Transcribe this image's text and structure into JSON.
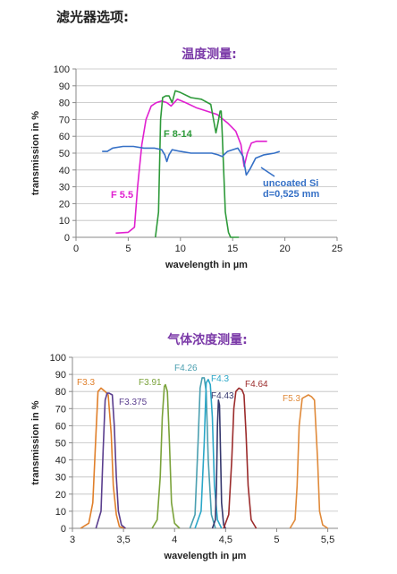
{
  "page": {
    "heading": "滤光器选项:"
  },
  "colors": {
    "title": "#7b3aa8",
    "axis": "#888888",
    "grid": "#bfbfbf"
  },
  "chart_data": [
    {
      "type": "line",
      "title": "温度测量:",
      "xlabel": "wavelength in µm",
      "ylabel": "transmission in %",
      "xlim": [
        0,
        25
      ],
      "ylim": [
        0,
        100
      ],
      "xticks": [
        0,
        5,
        10,
        15,
        20,
        25
      ],
      "yticks": [
        0,
        10,
        20,
        30,
        40,
        50,
        60,
        70,
        80,
        90,
        100
      ],
      "grid": "horizontal",
      "series": [
        {
          "name": "F 5.5",
          "color": "#e020d0",
          "x": [
            3.8,
            5.0,
            5.6,
            5.9,
            6.3,
            6.7,
            7.2,
            7.7,
            8.2,
            8.7,
            9.1,
            9.7,
            10.5,
            11.5,
            12.5,
            13.5,
            14.5,
            15.3,
            15.8,
            16.1,
            16.4,
            16.8,
            17.3,
            17.8,
            18.3
          ],
          "y": [
            2.5,
            3,
            6,
            30,
            55,
            70,
            78,
            80,
            81,
            80,
            78,
            82,
            80,
            77,
            75,
            73,
            68,
            63,
            55,
            42,
            50,
            56,
            57,
            57,
            57
          ]
        },
        {
          "name": "F 8-14",
          "color": "#2e9a3a",
          "x": [
            7.6,
            7.9,
            8.1,
            8.3,
            8.6,
            8.9,
            9.2,
            9.5,
            10.0,
            11.0,
            12.0,
            12.9,
            13.4,
            13.6,
            13.8,
            13.9,
            14.0,
            14.3,
            14.6,
            14.8,
            15.2,
            15.6
          ],
          "y": [
            0,
            15,
            70,
            83,
            84,
            84,
            80,
            87,
            86,
            83,
            82,
            79,
            62,
            68,
            75,
            75,
            62,
            15,
            3,
            0,
            0,
            0
          ]
        },
        {
          "name": "uncoated Si\nd=0,525 mm",
          "color": "#3570c6",
          "x": [
            2.5,
            3.0,
            3.5,
            4.5,
            5.5,
            6.5,
            7.5,
            8.2,
            8.5,
            8.7,
            8.9,
            9.2,
            10.0,
            11.0,
            12.0,
            13.0,
            13.6,
            14.0,
            14.5,
            15.0,
            15.5,
            16.0,
            16.3,
            16.7,
            17.2,
            18.0,
            19.0,
            19.5
          ],
          "y": [
            51,
            51,
            53,
            54,
            54,
            53,
            53,
            52,
            49,
            45,
            49,
            52,
            51,
            50,
            50,
            50,
            49,
            48,
            51,
            52,
            53,
            48,
            37,
            41,
            47,
            49,
            50,
            51
          ]
        }
      ]
    },
    {
      "type": "line",
      "title": "气体浓度测量:",
      "xlabel": "wavelength in µm",
      "ylabel": "transmission in %",
      "xlim": [
        3,
        5.6
      ],
      "ylim": [
        0,
        100
      ],
      "xticks": [
        3,
        3.5,
        4,
        4.5,
        5,
        5.5
      ],
      "xtick_labels": [
        "3",
        "3,5",
        "4",
        "4,5",
        "5",
        "5,5"
      ],
      "yticks": [
        0,
        10,
        20,
        30,
        40,
        50,
        60,
        70,
        80,
        90,
        100
      ],
      "grid": "horizontal",
      "series": [
        {
          "name": "F3.3",
          "color": "#e07f2a",
          "x": [
            3.08,
            3.16,
            3.2,
            3.23,
            3.25,
            3.28,
            3.32,
            3.35,
            3.38,
            3.4,
            3.43,
            3.46,
            3.52
          ],
          "y": [
            0,
            3,
            15,
            55,
            80,
            82,
            80,
            78,
            55,
            25,
            8,
            1,
            0
          ]
        },
        {
          "name": "F3.375",
          "color": "#5a3e8e",
          "x": [
            3.23,
            3.28,
            3.3,
            3.32,
            3.34,
            3.36,
            3.39,
            3.41,
            3.43,
            3.45,
            3.48,
            3.52
          ],
          "y": [
            0,
            10,
            45,
            75,
            79,
            79,
            78,
            60,
            30,
            10,
            2,
            0
          ]
        },
        {
          "name": "F3.91",
          "color": "#7aa23a",
          "x": [
            3.78,
            3.83,
            3.86,
            3.88,
            3.9,
            3.91,
            3.93,
            3.95,
            3.97,
            4.0,
            4.05
          ],
          "y": [
            0,
            5,
            30,
            65,
            83,
            84,
            80,
            50,
            15,
            3,
            0
          ]
        },
        {
          "name": "F4.26",
          "color": "#4a9fb0",
          "x": [
            4.15,
            4.2,
            4.23,
            4.25,
            4.27,
            4.29,
            4.31,
            4.33,
            4.36,
            4.4
          ],
          "y": [
            0,
            8,
            50,
            82,
            88,
            88,
            80,
            40,
            8,
            0
          ]
        },
        {
          "name": "F4.3",
          "color": "#2aa7c8",
          "x": [
            4.2,
            4.26,
            4.29,
            4.31,
            4.33,
            4.35,
            4.37,
            4.39,
            4.42,
            4.46
          ],
          "y": [
            0,
            10,
            50,
            85,
            87,
            84,
            65,
            25,
            5,
            0
          ]
        },
        {
          "name": "F4.43",
          "color": "#36386e",
          "x": [
            4.37,
            4.4,
            4.41,
            4.42,
            4.43,
            4.44,
            4.45,
            4.46,
            4.48,
            4.5
          ],
          "y": [
            0,
            5,
            25,
            60,
            75,
            72,
            45,
            15,
            2,
            0
          ]
        },
        {
          "name": "F4.64",
          "color": "#9b2b2b",
          "x": [
            4.48,
            4.53,
            4.56,
            4.58,
            4.6,
            4.63,
            4.66,
            4.68,
            4.7,
            4.72,
            4.75,
            4.8
          ],
          "y": [
            0,
            8,
            40,
            70,
            80,
            82,
            81,
            78,
            55,
            25,
            5,
            0
          ]
        },
        {
          "name": "F5.3",
          "color": "#e08a3a",
          "x": [
            5.13,
            5.18,
            5.2,
            5.22,
            5.25,
            5.28,
            5.31,
            5.34,
            5.37,
            5.4,
            5.42,
            5.45,
            5.5
          ],
          "y": [
            0,
            5,
            25,
            60,
            76,
            77,
            78,
            77,
            75,
            40,
            10,
            2,
            0
          ]
        }
      ]
    }
  ]
}
